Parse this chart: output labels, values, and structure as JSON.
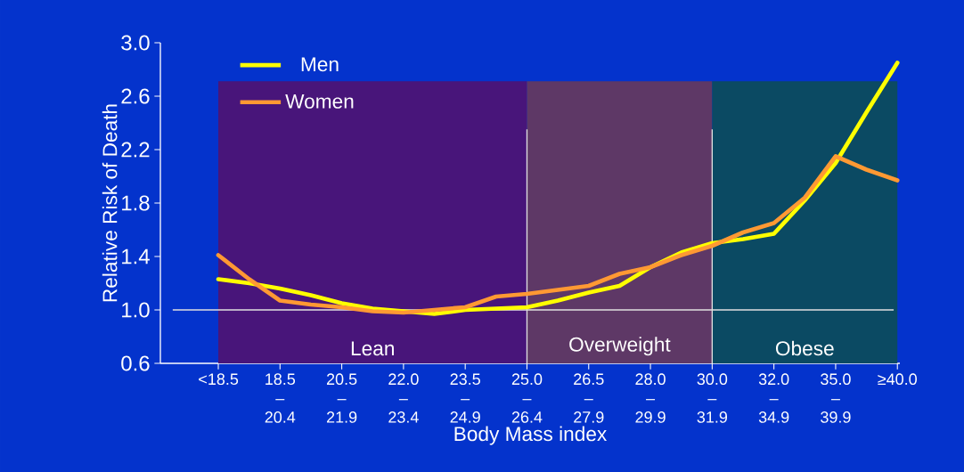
{
  "chart_data": {
    "type": "line",
    "xlabel": "Body Mass index",
    "ylabel": "Relative Risk of Death",
    "categories": [
      "<18.5",
      null,
      "18.5 – 20.4",
      null,
      "20.5 – 21.9",
      null,
      "22.0 – 23.4",
      null,
      "23.5 – 24.9",
      null,
      "25.0 – 26.4",
      null,
      "26.5 – 27.9",
      null,
      "28.0 – 29.9",
      null,
      "30.0 – 31.9",
      null,
      "32.0 – 34.9",
      null,
      "35.0 – 39.9",
      null,
      "≥40.0"
    ],
    "series": [
      {
        "name": "Men",
        "color": "#ffff00",
        "values": [
          1.23,
          1.2,
          1.16,
          1.11,
          1.05,
          1.01,
          0.99,
          0.97,
          1.0,
          1.01,
          1.02,
          1.07,
          1.13,
          1.18,
          1.32,
          1.43,
          1.5,
          1.53,
          1.57,
          1.82,
          2.1,
          2.48,
          2.85
        ]
      },
      {
        "name": "Women",
        "color": "#ff9933",
        "values": [
          1.41,
          1.23,
          1.07,
          1.04,
          1.02,
          0.99,
          0.98,
          1.0,
          1.02,
          1.1,
          1.12,
          1.15,
          1.18,
          1.27,
          1.32,
          1.41,
          1.48,
          1.58,
          1.65,
          1.84,
          2.15,
          2.05,
          1.97
        ]
      }
    ],
    "ylim": [
      0.6,
      3.0
    ],
    "yticks": [
      {
        "value": 0.6,
        "label": "0.6"
      },
      {
        "value": 1.0,
        "label": "1.0"
      },
      {
        "value": 1.4,
        "label": "1.4"
      },
      {
        "value": 1.8,
        "label": "1.8"
      },
      {
        "value": 2.2,
        "label": "2.2"
      },
      {
        "value": 2.6,
        "label": "2.6"
      },
      {
        "value": 3.0,
        "label": "3.0"
      }
    ],
    "bands": [
      {
        "axis": "x",
        "from": "<18.5",
        "to": "25.0 – 26.4",
        "label": "Lean",
        "color": "#48157a"
      },
      {
        "axis": "x",
        "from": "25.0 – 26.4",
        "to": "30.0 – 31.9",
        "label": "Overweight",
        "color": "#5e3866"
      },
      {
        "axis": "x",
        "from": "30.0 – 31.9",
        "to": "≥40.0",
        "label": "Obese",
        "color": "#0b4a63"
      }
    ],
    "ref_lines": [
      {
        "axis": "y",
        "value": 1.0,
        "color": "#e0e0e0"
      },
      {
        "axis": "x",
        "value": "25.0 – 26.4",
        "color": "#e0e0e0"
      },
      {
        "axis": "x",
        "value": "30.0 – 31.9",
        "color": "#e0e0e0"
      }
    ],
    "legend": "top left"
  }
}
